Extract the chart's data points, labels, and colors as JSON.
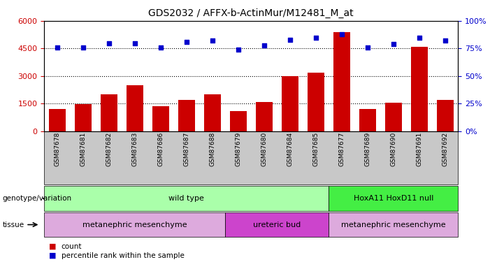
{
  "title": "GDS2032 / AFFX-b-ActinMur/M12481_M_at",
  "samples": [
    "GSM87678",
    "GSM87681",
    "GSM87682",
    "GSM87683",
    "GSM87686",
    "GSM87687",
    "GSM87688",
    "GSM87679",
    "GSM87680",
    "GSM87684",
    "GSM87685",
    "GSM87677",
    "GSM87689",
    "GSM87690",
    "GSM87691",
    "GSM87692"
  ],
  "counts": [
    1200,
    1450,
    2000,
    2500,
    1350,
    1700,
    2000,
    1100,
    1600,
    3000,
    3200,
    5400,
    1200,
    1550,
    4600,
    1700
  ],
  "percentile_ranks": [
    76,
    76,
    80,
    80,
    76,
    81,
    82,
    74,
    78,
    83,
    85,
    88,
    76,
    79,
    85,
    82
  ],
  "ylim_left": [
    0,
    6000
  ],
  "ylim_right": [
    0,
    100
  ],
  "yticks_left": [
    0,
    1500,
    3000,
    4500,
    6000
  ],
  "yticks_right": [
    0,
    25,
    50,
    75,
    100
  ],
  "bar_color": "#cc0000",
  "dot_color": "#0000cc",
  "hline_y_left": [
    1500,
    3000,
    4500
  ],
  "genotype_groups": [
    {
      "label": "wild type",
      "start": 0,
      "end": 10,
      "color": "#aaffaa"
    },
    {
      "label": "HoxA11 HoxD11 null",
      "start": 11,
      "end": 15,
      "color": "#44ee44"
    }
  ],
  "tissue_groups": [
    {
      "label": "metanephric mesenchyme",
      "start": 0,
      "end": 6,
      "color": "#ddaadd"
    },
    {
      "label": "ureteric bud",
      "start": 7,
      "end": 10,
      "color": "#cc44cc"
    },
    {
      "label": "metanephric mesenchyme",
      "start": 11,
      "end": 15,
      "color": "#ddaadd"
    }
  ],
  "genotype_label": "genotype/variation",
  "tissue_label": "tissue",
  "legend_count_label": "count",
  "legend_pct_label": "percentile rank within the sample",
  "tick_bg_color": "#c8c8c8"
}
